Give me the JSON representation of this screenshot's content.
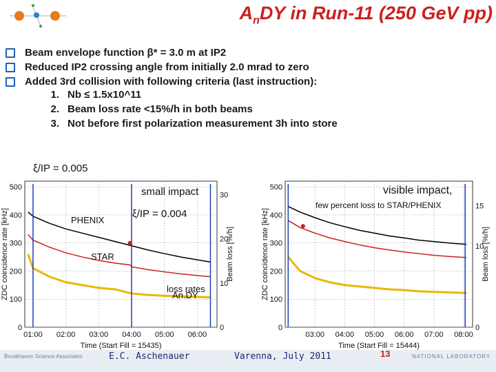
{
  "title_main": "A",
  "title_sub": "n",
  "title_rest": "DY in Run-11 (250 GeV pp)",
  "bullets": [
    "Beam envelope function β* = 3.0 m at IP2",
    "Reduced IP2 crossing angle from initially 2.0 mrad to zero",
    "Added 3rd collision with following criteria (last instruction):"
  ],
  "criteria": [
    {
      "num": "1.",
      "text": "Nb ≤ 1.5x10^11"
    },
    {
      "num": "2.",
      "text": "Beam loss rate <15%/h in both beams"
    },
    {
      "num": "3.",
      "text": "Not before first polarization measurement 3h into store"
    }
  ],
  "annotations": {
    "xi_top": "ξ/IP = 0.005",
    "small_impact": "small impact",
    "xi_mid": "ξ/IP = 0.004",
    "phenix": "PHENIX",
    "star": "STAR",
    "loss_rates": "loss rates",
    "andy": "An.DY",
    "visible_impact": "visible impact,",
    "few_percent": "few percent loss to STAR/PHENIX"
  },
  "footer": {
    "left": "Brookhaven Science Associates",
    "author": "E.C. Aschenauer",
    "venue": "Varenna, July 2011",
    "page": "13",
    "lab": "NATIONAL LABORATORY"
  },
  "colors": {
    "title": "#cc1f1f",
    "gold": "#e8b800",
    "blue": "#1c3fb8",
    "red": "#cc1f1f",
    "black": "#000000"
  },
  "chart_data": [
    {
      "type": "line",
      "xlabel": "Time (Start Fill = 15435)",
      "ylabel": "ZDC coincidence rate [kHz]",
      "y2label": "Beam loss [%/h]",
      "xticks": [
        "01:00",
        "02:00",
        "03:00",
        "04:00",
        "05:00",
        "06:00"
      ],
      "yticks": [
        "0",
        "100",
        "200",
        "300",
        "400",
        "500"
      ],
      "y2ticks": [
        "0",
        "10",
        "20",
        "30"
      ],
      "ylim": [
        0,
        520
      ],
      "y2lim": [
        0,
        33
      ],
      "series": [
        {
          "name": "PHENIX",
          "x": [
            0.85,
            1.0,
            1.5,
            2.0,
            2.5,
            3.0,
            3.5,
            4.0,
            4.5,
            5.0,
            5.5,
            6.0,
            6.4
          ],
          "values": [
            410,
            395,
            370,
            350,
            335,
            320,
            305,
            290,
            275,
            262,
            250,
            240,
            232
          ]
        },
        {
          "name": "STAR",
          "x": [
            0.85,
            1.0,
            1.5,
            2.0,
            2.5,
            3.0,
            3.5,
            3.95,
            4.0,
            4.5,
            5.0,
            5.5,
            6.0,
            6.4
          ],
          "values": [
            330,
            310,
            285,
            265,
            250,
            238,
            228,
            222,
            215,
            205,
            197,
            190,
            184,
            180
          ]
        },
        {
          "name": "loss rate",
          "x": [
            0.85,
            1.0,
            1.5,
            2.0,
            2.5,
            3.0,
            3.5,
            4.0,
            4.5,
            5.0,
            5.5,
            6.0,
            6.4
          ],
          "values": [
            260,
            210,
            180,
            160,
            150,
            140,
            135,
            120,
            115,
            112,
            110,
            108,
            106
          ]
        }
      ]
    },
    {
      "type": "line",
      "xlabel": "Time (Start Fill = 15444)",
      "ylabel": "ZDC coincidence rate [kHz]",
      "y2label": "Beam loss [%/h]",
      "xticks": [
        "03:00",
        "04:00",
        "05:00",
        "06:00",
        "07:00",
        "08:00"
      ],
      "yticks": [
        "0",
        "100",
        "200",
        "300",
        "400",
        "500"
      ],
      "y2ticks": [
        "0",
        "10",
        "15"
      ],
      "ylim": [
        0,
        520
      ],
      "y2lim": [
        0,
        18
      ],
      "series": [
        {
          "name": "PHENIX",
          "x": [
            2.1,
            2.5,
            3.0,
            3.5,
            4.0,
            4.5,
            5.0,
            5.5,
            6.0,
            6.5,
            7.0,
            7.5,
            8.1
          ],
          "values": [
            430,
            410,
            390,
            372,
            358,
            345,
            335,
            325,
            318,
            310,
            305,
            300,
            295
          ]
        },
        {
          "name": "STAR",
          "x": [
            2.1,
            2.5,
            3.0,
            3.5,
            4.0,
            4.5,
            5.0,
            5.5,
            6.0,
            6.5,
            7.0,
            7.5,
            8.1
          ],
          "values": [
            380,
            355,
            335,
            318,
            305,
            293,
            283,
            275,
            268,
            262,
            256,
            252,
            248
          ]
        },
        {
          "name": "loss rate",
          "x": [
            2.1,
            2.5,
            3.0,
            3.5,
            4.0,
            4.5,
            5.0,
            5.5,
            6.0,
            6.5,
            7.0,
            7.5,
            8.1
          ],
          "values": [
            250,
            200,
            175,
            160,
            150,
            145,
            140,
            135,
            132,
            128,
            126,
            124,
            122
          ]
        }
      ]
    }
  ]
}
